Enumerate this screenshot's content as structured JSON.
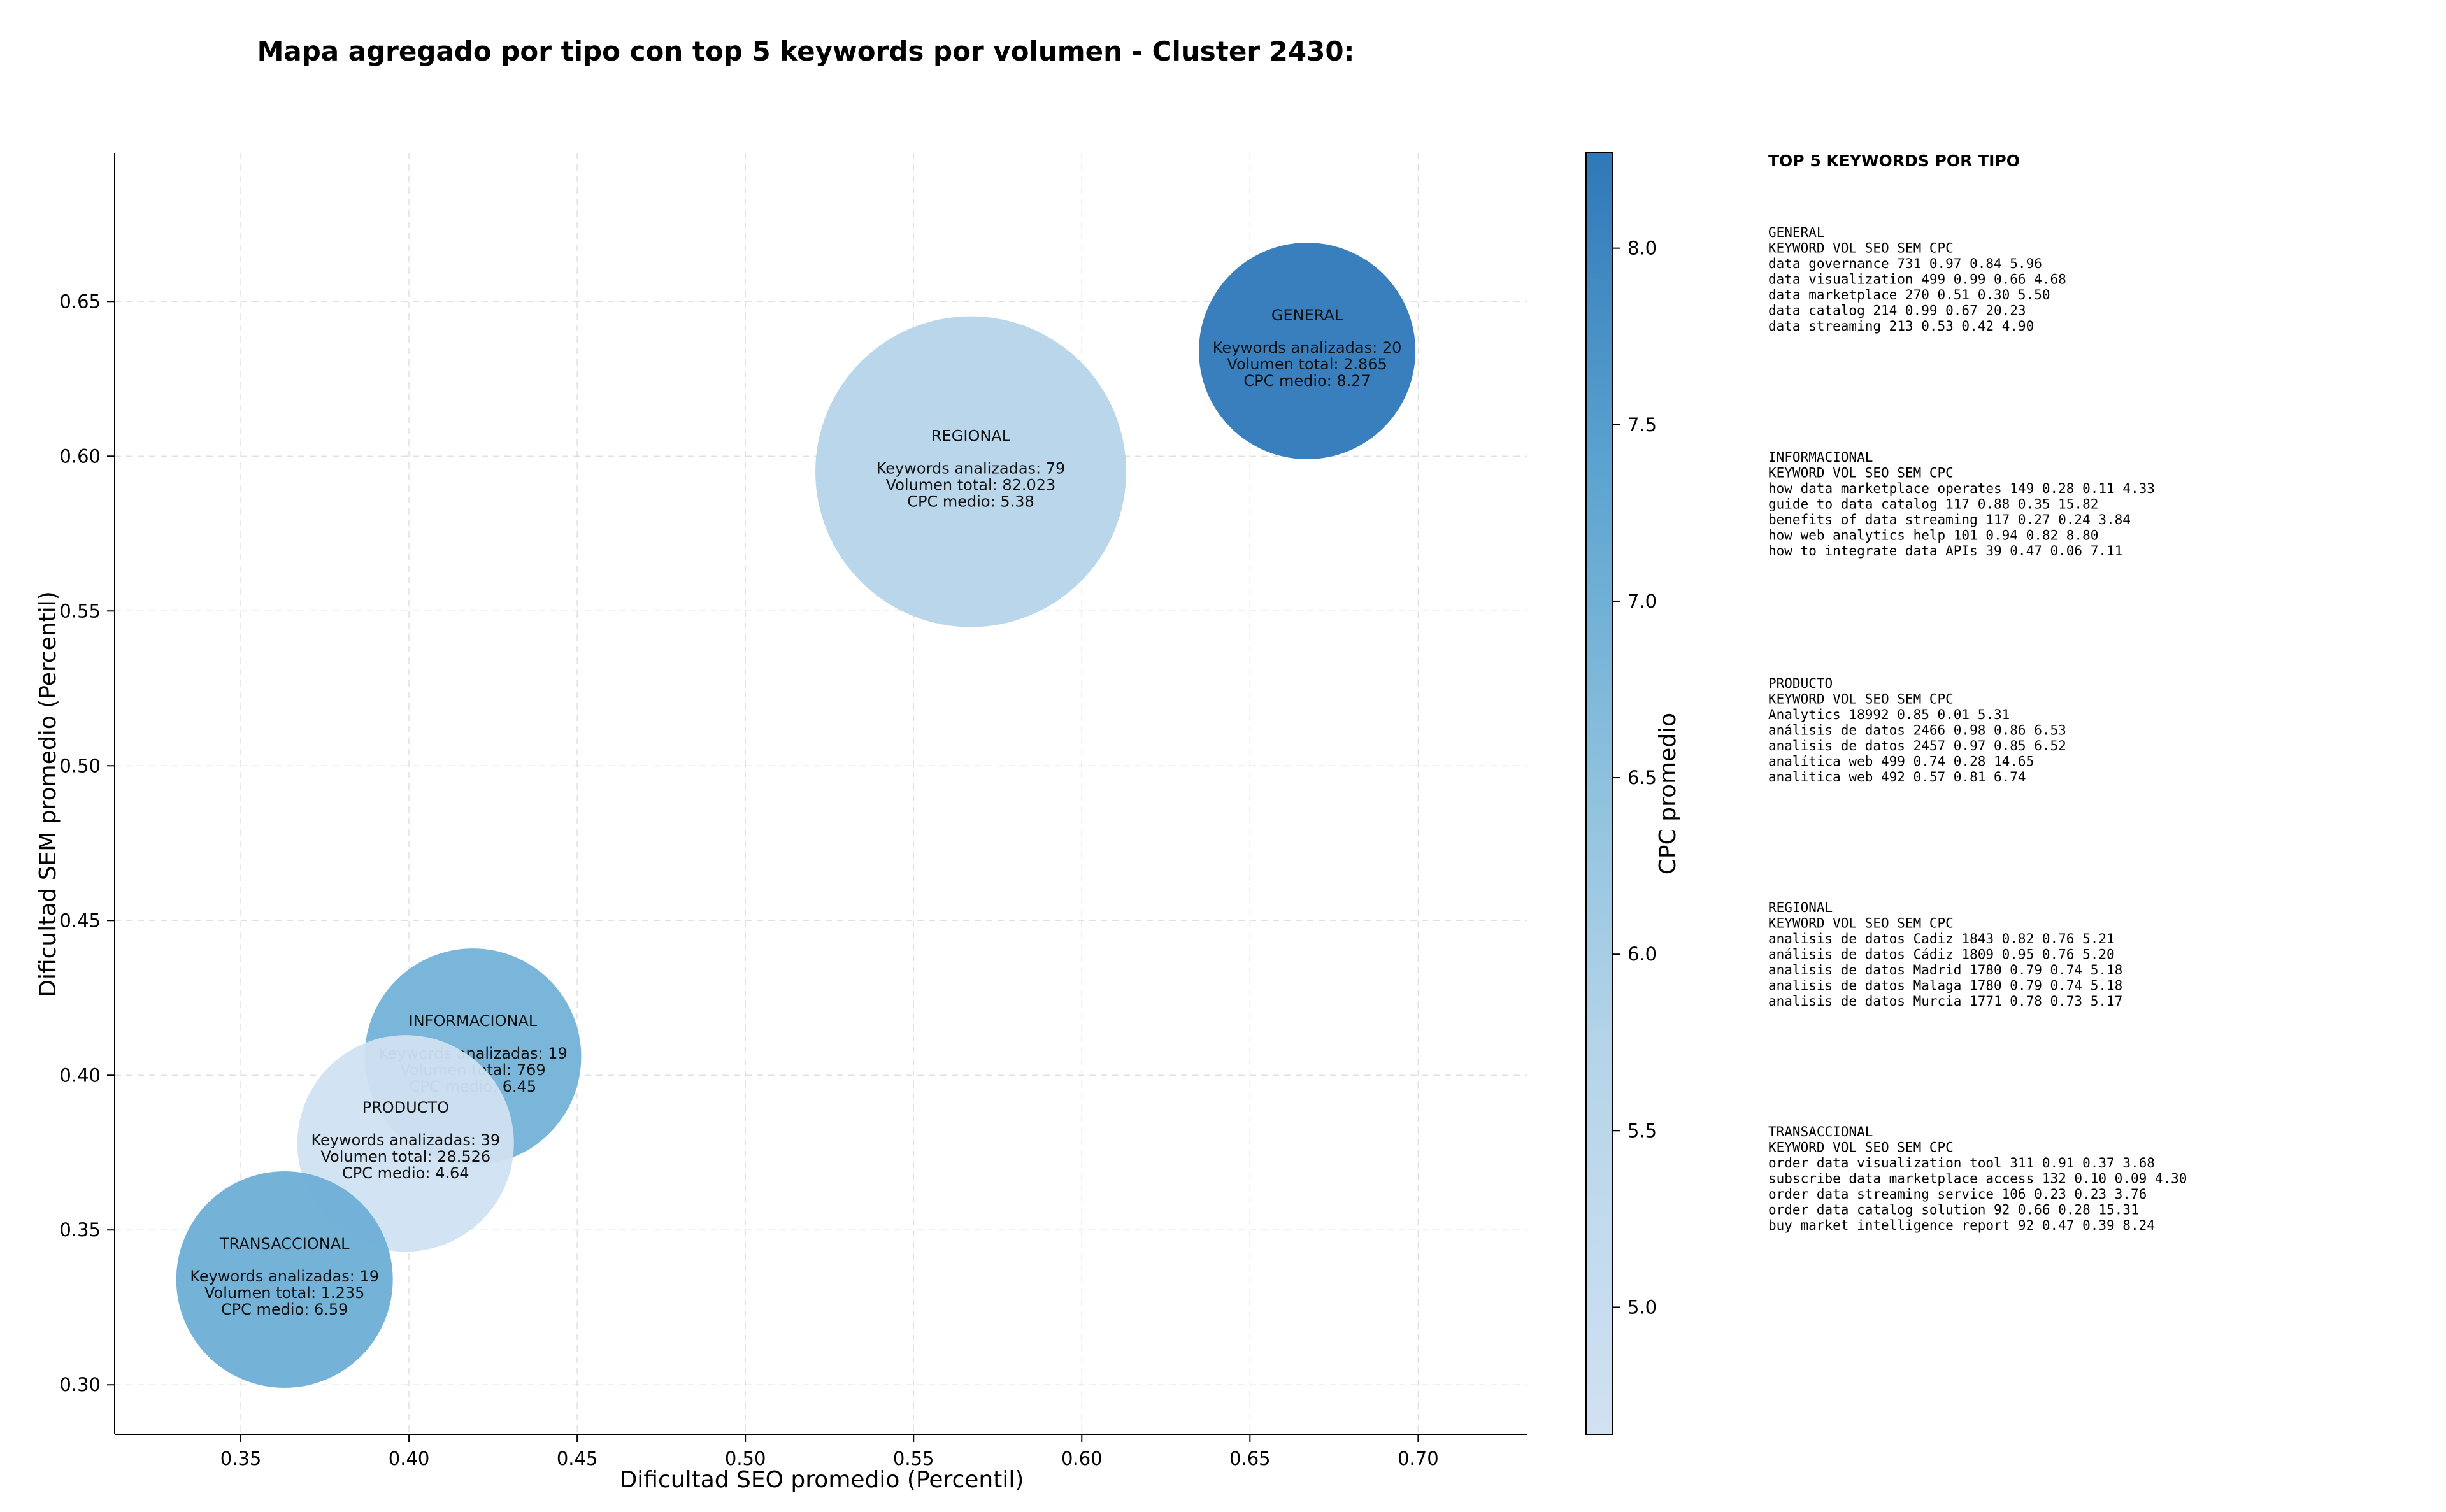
{
  "chart_data": {
    "type": "scatter",
    "title": "Mapa agregado por tipo con top 5 keywords por volumen - Cluster 2430:",
    "xlabel": "Dificultad SEO promedio (Percentil)",
    "ylabel": "Dificultad SEM promedio (Percentil)",
    "xlim": [
      0.3125,
      0.7325
    ],
    "ylim": [
      0.284,
      0.698
    ],
    "xticks": [
      "0.35",
      "0.40",
      "0.45",
      "0.50",
      "0.55",
      "0.60",
      "0.65",
      "0.70"
    ],
    "yticks": [
      "0.30",
      "0.35",
      "0.40",
      "0.45",
      "0.50",
      "0.55",
      "0.60",
      "0.65"
    ],
    "grid": true,
    "colorbar": {
      "label": "CPC promedio",
      "min": 4.64,
      "max": 8.27,
      "ticks": [
        "5.0",
        "5.5",
        "6.0",
        "6.5",
        "7.0",
        "7.5",
        "8.0"
      ],
      "colormap": "Blues",
      "color_low": "#d0e1f2",
      "color_high": "#2f78b9"
    },
    "series": [
      {
        "name": "GENERAL",
        "x": 0.667,
        "y": 0.634,
        "keywords_label": "Keywords analizadas: 20",
        "volume_label": "Volumen total: 2.865",
        "cpc_label": "CPC medio: 8.27",
        "keywords": 20,
        "volume": 2865,
        "cpc": 8.27,
        "color": "#2f78b9"
      },
      {
        "name": "REGIONAL",
        "x": 0.567,
        "y": 0.595,
        "keywords_label": "Keywords analizadas: 79",
        "volume_label": "Volumen total: 82.023",
        "cpc_label": "CPC medio: 5.38",
        "keywords": 79,
        "volume": 82023,
        "cpc": 5.38,
        "color": "#b5d4e9"
      },
      {
        "name": "INFORMACIONAL",
        "x": 0.419,
        "y": 0.406,
        "keywords_label": "Keywords analizadas: 19",
        "volume_label": "Volumen total: 769",
        "cpc_label": "CPC medio: 6.45",
        "keywords": 19,
        "volume": 769,
        "cpc": 6.45,
        "color": "#72b2d8"
      },
      {
        "name": "PRODUCTO",
        "x": 0.399,
        "y": 0.378,
        "keywords_label": "Keywords analizadas: 39",
        "volume_label": "Volumen total: 28.526",
        "cpc_label": "CPC medio: 4.64",
        "keywords": 39,
        "volume": 28526,
        "cpc": 4.64,
        "color": "#d0e1f2"
      },
      {
        "name": "TRANSACCIONAL",
        "x": 0.363,
        "y": 0.334,
        "keywords_label": "Keywords analizadas: 19",
        "volume_label": "Volumen total: 1.235",
        "cpc_label": "CPC medio: 6.59",
        "keywords": 19,
        "volume": 1235,
        "cpc": 6.59,
        "color": "#6eaed6"
      }
    ]
  },
  "side_panel": {
    "title": "TOP 5 KEYWORDS POR TIPO",
    "groups": [
      {
        "name": "GENERAL",
        "header": "KEYWORD               VOL    SEO    SEM      CPC",
        "rows": [
          "data governance       731   0.97   0.84     5.96",
          "data visualization    499   0.99   0.66     4.68",
          "data marketplace      270   0.51   0.30     5.50",
          "data catalog          214   0.99   0.67    20.23",
          "data streaming        213   0.53   0.42     4.90"
        ]
      },
      {
        "name": "INFORMACIONAL",
        "header": "KEYWORD                         VOL    SEO    SEM      CPC",
        "rows": [
          "how data marketplace operates   149   0.28   0.11     4.33",
          "guide to data catalog           117   0.88   0.35    15.82",
          "benefits of data streaming      117   0.27   0.24     3.84",
          "how web analytics help          101   0.94   0.82     8.80",
          "how to integrate data APIs       39   0.47   0.06     7.11"
        ]
      },
      {
        "name": "PRODUCTO",
        "header": "KEYWORD              VOL    SEO    SEM      CPC",
        "rows": [
          "Analytics          18992   0.85   0.01     5.31",
          "análisis de datos   2466   0.98   0.86     6.53",
          "analisis de datos   2457   0.97   0.85     6.52",
          "analítica web        499   0.74   0.28    14.65",
          "analitica web        492   0.57   0.81     6.74"
        ]
      },
      {
        "name": "REGIONAL",
        "header": "KEYWORD                    VOL    SEO    SEM      CPC",
        "rows": [
          "analisis de datos Cadiz     1843   0.82   0.76     5.21",
          "análisis de datos Cádiz     1809   0.95   0.76     5.20",
          "analisis de datos Madrid    1780   0.79   0.74     5.18",
          "analisis de datos Malaga    1780   0.79   0.74     5.18",
          "analisis de datos Murcia    1771   0.78   0.73     5.17"
        ]
      },
      {
        "name": "TRANSACCIONAL",
        "header": "KEYWORD                             VOL    SEO    SEM      CPC",
        "rows": [
          "order data visualization tool       311   0.91   0.37     3.68",
          "subscribe data marketplace access   132   0.10   0.09     4.30",
          "order data streaming service        106   0.23   0.23     3.76",
          "order data catalog solution          92   0.66   0.28    15.31",
          "buy market intelligence report       92   0.47   0.39     8.24"
        ]
      }
    ]
  }
}
